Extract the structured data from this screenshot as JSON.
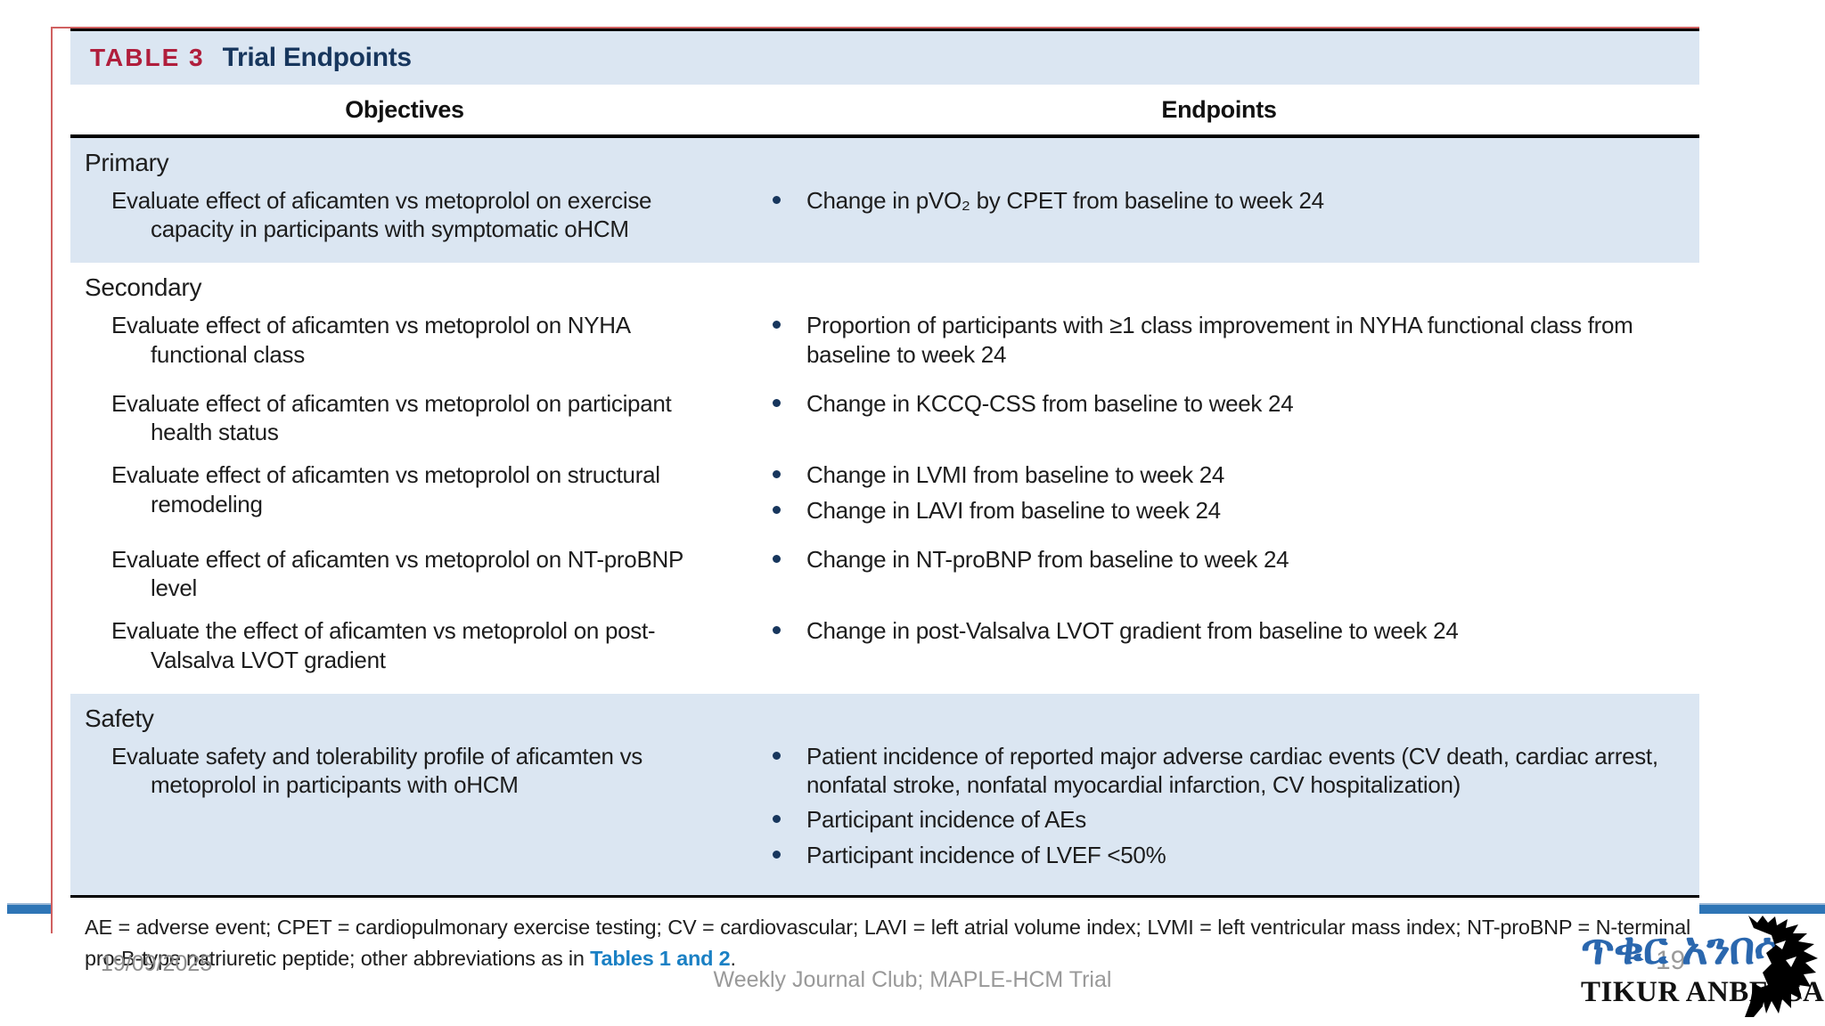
{
  "colors": {
    "accent_red": "#b01e3c",
    "accent_navy": "#17365d",
    "shaded_row_bg": "#dbe6f2",
    "link_blue": "#1a80c4",
    "divider_blue": "#2e75b6",
    "logo_blue": "#2a67ae",
    "footer_gray": "#8e8e8e"
  },
  "table": {
    "label": "TABLE 3",
    "title": "Trial Endpoints",
    "columns": [
      "Objectives",
      "Endpoints"
    ],
    "sections": [
      {
        "name": "Primary",
        "shaded": true,
        "rows": [
          {
            "objective": "Evaluate effect of aficamten vs metoprolol on exercise capacity in participants with symptomatic oHCM",
            "endpoints": [
              "Change in pVO₂ by CPET from baseline to week 24"
            ]
          }
        ]
      },
      {
        "name": "Secondary",
        "shaded": false,
        "rows": [
          {
            "objective": "Evaluate effect of aficamten vs metoprolol on NYHA functional class",
            "endpoints": [
              "Proportion of participants with ≥1 class improvement in NYHA functional class from baseline to week 24"
            ]
          },
          {
            "objective": "Evaluate effect of aficamten vs metoprolol on participant health status",
            "endpoints": [
              "Change in KCCQ-CSS from baseline to week 24"
            ]
          },
          {
            "objective": "Evaluate effect of aficamten vs metoprolol on structural remodeling",
            "endpoints": [
              "Change in LVMI from baseline to week 24",
              "Change in LAVI from baseline to week 24"
            ]
          },
          {
            "objective": "Evaluate effect of aficamten vs metoprolol on NT-proBNP level",
            "endpoints": [
              "Change in NT-proBNP from baseline to week 24"
            ]
          },
          {
            "objective": "Evaluate the effect of aficamten vs metoprolol on post-Valsalva LVOT gradient",
            "endpoints": [
              "Change in post-Valsalva LVOT gradient from baseline to week 24"
            ]
          }
        ]
      },
      {
        "name": "Safety",
        "shaded": true,
        "rows": [
          {
            "objective": "Evaluate safety and tolerability profile of aficamten vs metoprolol in participants with oHCM",
            "endpoints": [
              "Patient incidence of reported major adverse cardiac events (CV death, cardiac arrest, nonfatal stroke, nonfatal myocardial infarction, CV hospitalization)",
              "Participant incidence of AEs",
              "Participant incidence of LVEF <50%"
            ]
          }
        ]
      }
    ],
    "footnote": {
      "text_before_link": "AE = adverse event; CPET = cardiopulmonary exercise testing; CV = cardiovascular; LAVI = left atrial volume index; LVMI = left ventricular mass index; NT-proBNP = N-terminal pro-B-type natriuretic peptide; other abbreviations as in ",
      "link_text": "Tables 1 and 2",
      "text_after_link": "."
    }
  },
  "footer": {
    "date": "19/09/2025",
    "title": "Weekly Journal Club; MAPLE-HCM Trial",
    "page_number": "19"
  },
  "logo": {
    "amharic": "ጥቁር አንበሳ",
    "latin": "TIKUR ANBESSA"
  }
}
